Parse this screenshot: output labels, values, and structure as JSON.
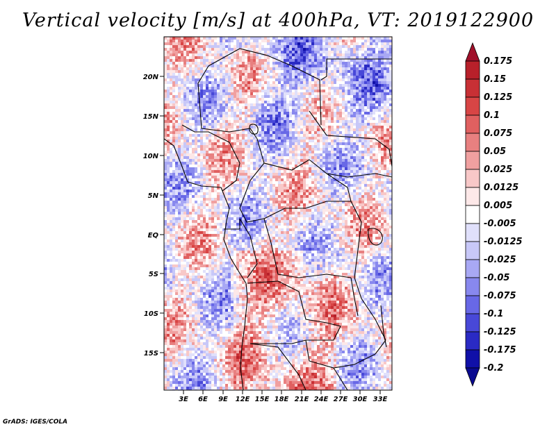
{
  "title": "Vertical velocity [m/s] at 400hPa, VT: 2019122900",
  "credit": "GrADS: IGES/COLA",
  "map": {
    "lat_labels": [
      "20N",
      "15N",
      "10N",
      "5N",
      "EQ",
      "5S",
      "10S",
      "15S"
    ],
    "lon_labels": [
      "3E",
      "6E",
      "9E",
      "12E",
      "15E",
      "18E",
      "21E",
      "24E",
      "27E",
      "30E",
      "33E"
    ]
  },
  "colorbar": {
    "labels": [
      "0.175",
      "0.15",
      "0.125",
      "0.1",
      "0.075",
      "0.05",
      "0.025",
      "0.0125",
      "0.005",
      "-0.005",
      "-0.0125",
      "-0.025",
      "-0.05",
      "-0.075",
      "-0.1",
      "-0.125",
      "-0.175",
      "-0.2"
    ],
    "colors": [
      "#a0102a",
      "#b8202a",
      "#c83035",
      "#d84545",
      "#e06060",
      "#e88080",
      "#f0a0a0",
      "#f8c8c8",
      "#fde8e8",
      "#ffffff",
      "#e0e0fb",
      "#c8c8f8",
      "#a8a8f4",
      "#8888ee",
      "#6868e6",
      "#4848d8",
      "#2a2ac4",
      "#1010a8",
      "#0a0a90"
    ]
  }
}
